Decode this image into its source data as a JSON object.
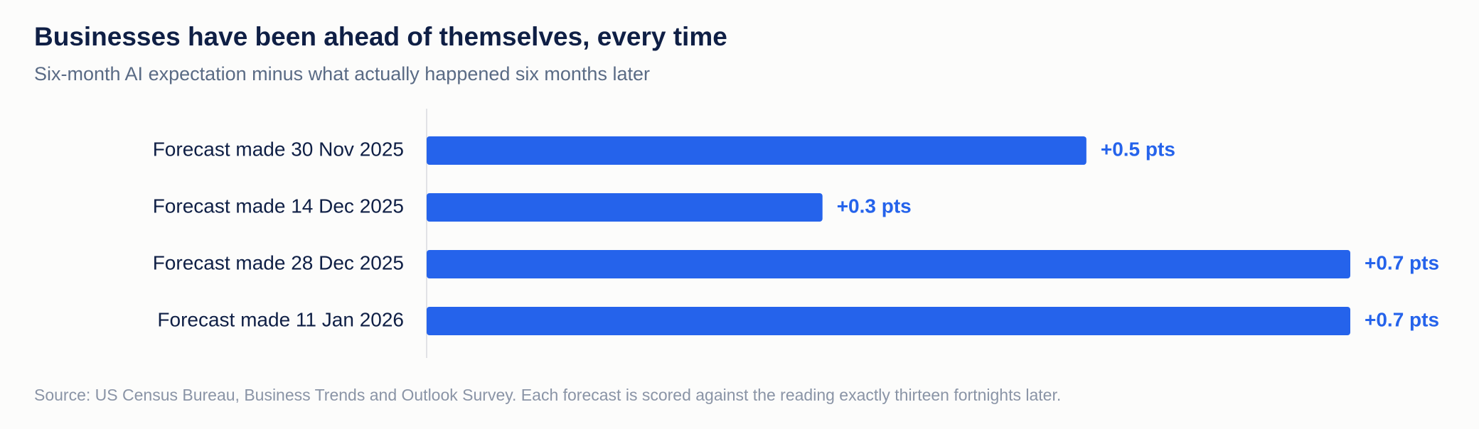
{
  "chart_data": {
    "type": "hbar",
    "title": "Businesses have been ahead of themselves, every time",
    "subtitle": "Six-month AI expectation minus what actually happened six months later",
    "categories": [
      "Forecast made 30 Nov 2025",
      "Forecast made 14 Dec 2025",
      "Forecast made 28 Dec 2025",
      "Forecast made 11 Jan 2026"
    ],
    "values": [
      0.5,
      0.3,
      0.7,
      0.7
    ],
    "value_labels": [
      "+0.5 pts",
      "+0.3 pts",
      "+0.7 pts",
      "+0.7 pts"
    ],
    "color": "#2563eb",
    "source": "Source: US Census Bureau, Business Trends and Outlook Survey. Each forecast is scored against the reading exactly thirteen fortnights later."
  }
}
